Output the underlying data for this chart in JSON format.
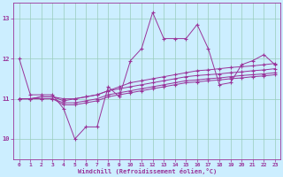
{
  "xlabel": "Windchill (Refroidissement éolien,°C)",
  "xlim": [
    -0.5,
    23.5
  ],
  "ylim": [
    9.5,
    13.4
  ],
  "yticks": [
    10,
    11,
    12,
    13
  ],
  "xticks": [
    0,
    1,
    2,
    3,
    4,
    5,
    6,
    7,
    8,
    9,
    10,
    11,
    12,
    13,
    14,
    15,
    16,
    17,
    18,
    19,
    20,
    21,
    22,
    23
  ],
  "bg_color": "#cceeff",
  "grid_color": "#99ccbb",
  "line_color": "#993399",
  "series": [
    [
      12.0,
      11.1,
      11.1,
      11.1,
      10.75,
      10.0,
      10.3,
      10.3,
      11.3,
      11.05,
      11.95,
      12.25,
      13.15,
      12.5,
      12.5,
      12.5,
      12.85,
      12.25,
      11.35,
      11.4,
      11.85,
      11.95,
      12.1,
      11.85
    ],
    [
      11.0,
      11.0,
      11.05,
      11.05,
      11.0,
      11.0,
      11.05,
      11.1,
      11.2,
      11.3,
      11.4,
      11.45,
      11.5,
      11.55,
      11.6,
      11.65,
      11.7,
      11.72,
      11.75,
      11.78,
      11.8,
      11.82,
      11.85,
      11.88
    ],
    [
      11.0,
      11.0,
      11.05,
      11.05,
      10.95,
      11.0,
      11.05,
      11.1,
      11.2,
      11.25,
      11.3,
      11.35,
      11.4,
      11.45,
      11.5,
      11.55,
      11.58,
      11.6,
      11.62,
      11.65,
      11.67,
      11.7,
      11.72,
      11.75
    ],
    [
      11.0,
      11.0,
      11.0,
      11.0,
      10.9,
      10.9,
      10.95,
      11.0,
      11.1,
      11.15,
      11.2,
      11.25,
      11.3,
      11.35,
      11.4,
      11.45,
      11.47,
      11.5,
      11.52,
      11.55,
      11.58,
      11.6,
      11.62,
      11.65
    ],
    [
      11.0,
      11.0,
      11.0,
      11.0,
      10.85,
      10.85,
      10.9,
      10.95,
      11.05,
      11.1,
      11.15,
      11.2,
      11.25,
      11.3,
      11.35,
      11.4,
      11.42,
      11.45,
      11.47,
      11.5,
      11.52,
      11.55,
      11.57,
      11.6
    ]
  ]
}
